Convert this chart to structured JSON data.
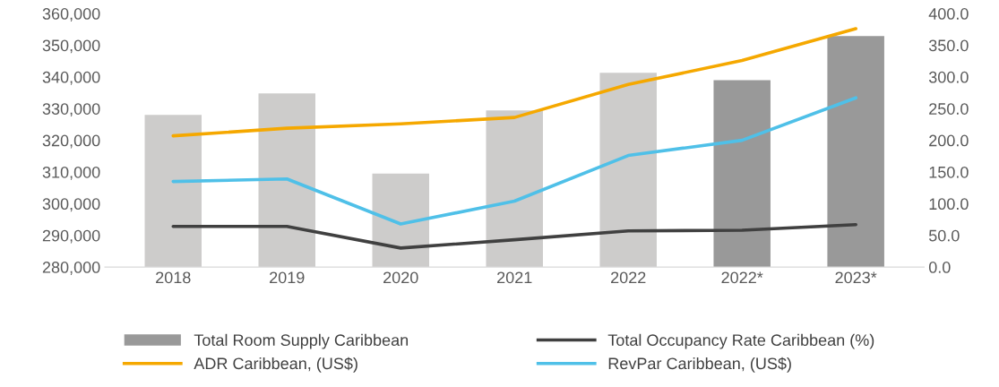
{
  "chart_data": {
    "type": "bar",
    "categories": [
      "2018",
      "2019",
      "2020",
      "2021",
      "2022",
      "2022*",
      "2023*"
    ],
    "series": [
      {
        "name": "Total Room Supply Caribbean",
        "color": "#999999",
        "colors": [
          "#cdcccb",
          "#cdcccb",
          "#cdcccb",
          "#cdcccb",
          "#cdcccb",
          "#999999",
          "#999999"
        ],
        "values": [
          328000,
          334800,
          309500,
          329400,
          341300,
          339000,
          352900
        ]
      },
      {
        "name": "Total Occupancy Rate Caribbean (%)",
        "type": "line",
        "axis": "y2",
        "color": "#404040",
        "values": [
          64,
          64,
          30,
          43,
          57,
          58,
          67
        ]
      },
      {
        "name": "ADR Caribbean, (US$)",
        "type": "line",
        "axis": "y2",
        "color": "#f5a800",
        "values": [
          207,
          219,
          226,
          236,
          288,
          326,
          376
        ]
      },
      {
        "name": "RevPar Caribbean, (US$)",
        "type": "line",
        "axis": "y2",
        "color": "#4fc0e8",
        "values": [
          135,
          139,
          68,
          104,
          176,
          200,
          267
        ]
      }
    ],
    "ylim": [
      280000,
      360000
    ],
    "yticks": [
      {
        "value": 280000,
        "label": "280,000"
      },
      {
        "value": 290000,
        "label": "290,000"
      },
      {
        "value": 300000,
        "label": "300,000"
      },
      {
        "value": 310000,
        "label": "310,000"
      },
      {
        "value": 320000,
        "label": "320,000"
      },
      {
        "value": 330000,
        "label": "330,000"
      },
      {
        "value": 340000,
        "label": "340,000"
      },
      {
        "value": 350000,
        "label": "350,000"
      },
      {
        "value": 360000,
        "label": "360,000"
      }
    ],
    "y2lim": [
      0,
      400
    ],
    "y2ticks": [
      {
        "value": 0,
        "label": "0.0"
      },
      {
        "value": 50,
        "label": "50.0"
      },
      {
        "value": 100,
        "label": "100.0"
      },
      {
        "value": 150,
        "label": "150.0"
      },
      {
        "value": 200,
        "label": "200.0"
      },
      {
        "value": 250,
        "label": "250.0"
      },
      {
        "value": 300,
        "label": "300.0"
      },
      {
        "value": 350,
        "label": "350.0"
      },
      {
        "value": 400,
        "label": "400.0"
      }
    ],
    "legend": "bottom",
    "grid": false,
    "marker": "none",
    "line_style": "solid"
  }
}
